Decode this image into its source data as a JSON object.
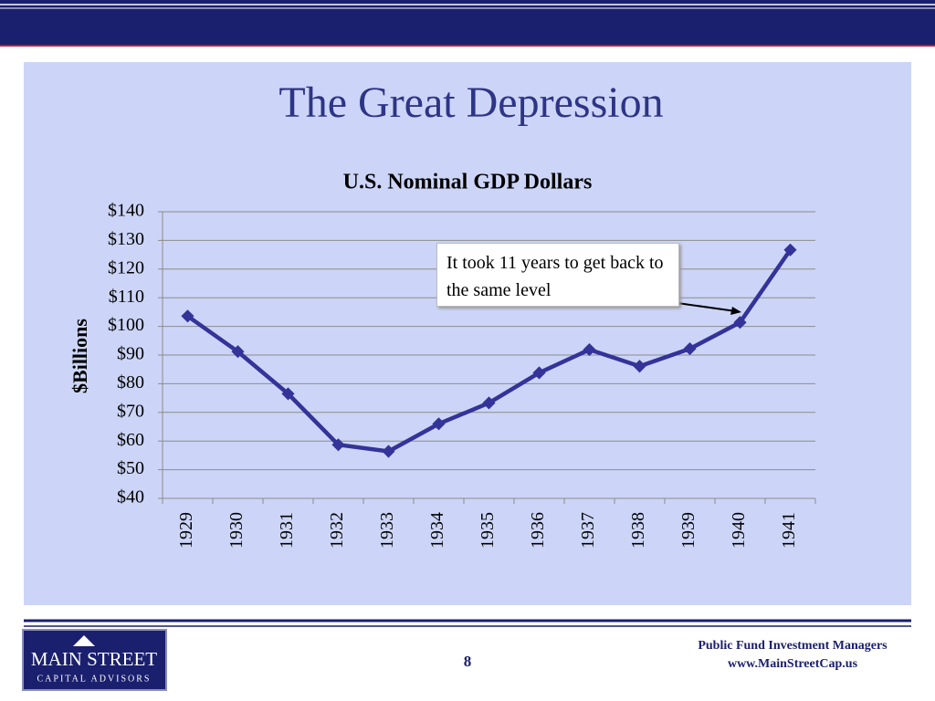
{
  "slide": {
    "title": "The Great Depression",
    "page_number": "8",
    "footer_lines": [
      "Public Fund Investment Managers",
      "www.MainStreetCap.us"
    ],
    "logo_lines": [
      "MAIN STREET",
      "CAPITAL ADVISORS"
    ]
  },
  "chart_data": {
    "type": "line",
    "title": "U.S. Nominal GDP Dollars",
    "y_label": "$Billions",
    "categories": [
      "1929",
      "1930",
      "1931",
      "1932",
      "1933",
      "1934",
      "1935",
      "1936",
      "1937",
      "1938",
      "1939",
      "1940",
      "1941"
    ],
    "series": [
      {
        "name": "Nominal GDP",
        "color": "#333399",
        "values": [
          103.6,
          91.2,
          76.5,
          58.7,
          56.4,
          66.0,
          73.3,
          83.8,
          91.9,
          86.1,
          92.2,
          101.4,
          126.7
        ]
      }
    ],
    "ylim": [
      40,
      140
    ],
    "yticks": [
      {
        "value": 40,
        "label": "$40"
      },
      {
        "value": 50,
        "label": "$50"
      },
      {
        "value": 60,
        "label": "$60"
      },
      {
        "value": 70,
        "label": "$70"
      },
      {
        "value": 80,
        "label": "$80"
      },
      {
        "value": 90,
        "label": "$90"
      },
      {
        "value": 100,
        "label": "$100"
      },
      {
        "value": 110,
        "label": "$110"
      },
      {
        "value": 120,
        "label": "$120"
      },
      {
        "value": 130,
        "label": "$130"
      },
      {
        "value": 140,
        "label": "$140"
      }
    ],
    "grid": true,
    "annotation": "It took 11 years to get back to the same level"
  }
}
